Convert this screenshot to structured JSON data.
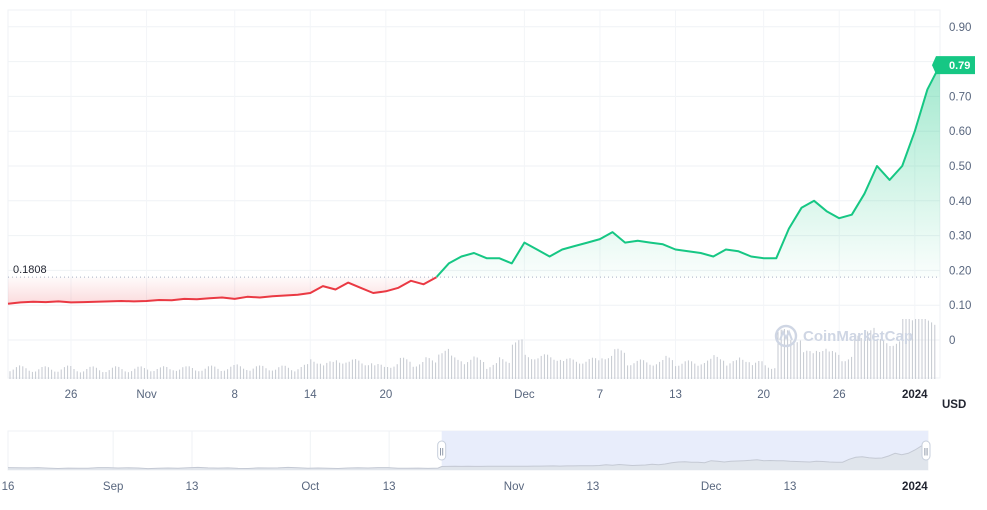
{
  "watermark": "CoinMarketCap",
  "unit_label": "USD",
  "colors": {
    "up": "#16c784",
    "down": "#ea3943",
    "volume": "#c4c8d0",
    "navigator": "#e8edfb"
  },
  "chart_data": {
    "type": "line",
    "title": "",
    "ylabel": "",
    "unit": "USD",
    "ylim": [
      0,
      0.9
    ],
    "y_ticks": [
      "0.90",
      "0.80",
      "0.70",
      "0.60",
      "0.50",
      "0.40",
      "0.30",
      "0.20",
      "0.10",
      "0"
    ],
    "y_tick_values": [
      0.9,
      0.8,
      0.7,
      0.6,
      0.5,
      0.4,
      0.3,
      0.2,
      0.1,
      0
    ],
    "x_ticks": [
      "26",
      "Nov",
      "8",
      "14",
      "20",
      "Dec",
      "7",
      "13",
      "20",
      "26",
      "2024"
    ],
    "x_tick_dates": [
      "2023-10-26",
      "2023-11-01",
      "2023-11-08",
      "2023-11-14",
      "2023-11-20",
      "2023-12-01",
      "2023-12-07",
      "2023-12-13",
      "2023-12-20",
      "2023-12-26",
      "2024-01-01"
    ],
    "x_range": [
      "2023-10-21",
      "2024-01-03"
    ],
    "reference_line": {
      "value": 0.1808,
      "label": "0.1808"
    },
    "current_price": {
      "value": 0.79,
      "label": "0.79"
    },
    "series": [
      {
        "values": [
          [
            "2023-10-21",
            0.104
          ],
          [
            "2023-10-22",
            0.108
          ],
          [
            "2023-10-23",
            0.11
          ],
          [
            "2023-10-24",
            0.109
          ],
          [
            "2023-10-25",
            0.111
          ],
          [
            "2023-10-26",
            0.108
          ],
          [
            "2023-10-27",
            0.109
          ],
          [
            "2023-10-28",
            0.11
          ],
          [
            "2023-10-29",
            0.111
          ],
          [
            "2023-10-30",
            0.112
          ],
          [
            "2023-10-31",
            0.111
          ],
          [
            "2023-11-01",
            0.112
          ],
          [
            "2023-11-02",
            0.115
          ],
          [
            "2023-11-03",
            0.114
          ],
          [
            "2023-11-04",
            0.118
          ],
          [
            "2023-11-05",
            0.117
          ],
          [
            "2023-11-06",
            0.12
          ],
          [
            "2023-11-07",
            0.122
          ],
          [
            "2023-11-08",
            0.118
          ],
          [
            "2023-11-09",
            0.124
          ],
          [
            "2023-11-10",
            0.122
          ],
          [
            "2023-11-11",
            0.126
          ],
          [
            "2023-11-12",
            0.128
          ],
          [
            "2023-11-13",
            0.13
          ],
          [
            "2023-11-14",
            0.135
          ],
          [
            "2023-11-15",
            0.155
          ],
          [
            "2023-11-16",
            0.145
          ],
          [
            "2023-11-17",
            0.165
          ],
          [
            "2023-11-18",
            0.15
          ],
          [
            "2023-11-19",
            0.135
          ],
          [
            "2023-11-20",
            0.14
          ],
          [
            "2023-11-21",
            0.15
          ],
          [
            "2023-11-22",
            0.17
          ],
          [
            "2023-11-23",
            0.16
          ],
          [
            "2023-11-24",
            0.18
          ],
          [
            "2023-11-25",
            0.22
          ],
          [
            "2023-11-26",
            0.24
          ],
          [
            "2023-11-27",
            0.25
          ],
          [
            "2023-11-28",
            0.235
          ],
          [
            "2023-11-29",
            0.235
          ],
          [
            "2023-11-30",
            0.22
          ],
          [
            "2023-12-01",
            0.28
          ],
          [
            "2023-12-02",
            0.26
          ],
          [
            "2023-12-03",
            0.24
          ],
          [
            "2023-12-04",
            0.26
          ],
          [
            "2023-12-05",
            0.27
          ],
          [
            "2023-12-06",
            0.28
          ],
          [
            "2023-12-07",
            0.29
          ],
          [
            "2023-12-08",
            0.31
          ],
          [
            "2023-12-09",
            0.28
          ],
          [
            "2023-12-10",
            0.285
          ],
          [
            "2023-12-11",
            0.28
          ],
          [
            "2023-12-12",
            0.275
          ],
          [
            "2023-12-13",
            0.26
          ],
          [
            "2023-12-14",
            0.255
          ],
          [
            "2023-12-15",
            0.25
          ],
          [
            "2023-12-16",
            0.24
          ],
          [
            "2023-12-17",
            0.26
          ],
          [
            "2023-12-18",
            0.255
          ],
          [
            "2023-12-19",
            0.24
          ],
          [
            "2023-12-20",
            0.235
          ],
          [
            "2023-12-21",
            0.235
          ],
          [
            "2023-12-22",
            0.32
          ],
          [
            "2023-12-23",
            0.38
          ],
          [
            "2023-12-24",
            0.4
          ],
          [
            "2023-12-25",
            0.37
          ],
          [
            "2023-12-26",
            0.35
          ],
          [
            "2023-12-27",
            0.36
          ],
          [
            "2023-12-28",
            0.42
          ],
          [
            "2023-12-29",
            0.5
          ],
          [
            "2023-12-30",
            0.46
          ],
          [
            "2023-12-31",
            0.5
          ],
          [
            "2024-01-01",
            0.6
          ],
          [
            "2024-01-02",
            0.72
          ],
          [
            "2024-01-03",
            0.79
          ]
        ]
      }
    ]
  },
  "navigator": {
    "x_ticks": [
      "16",
      "Sep",
      "13",
      "Oct",
      "13",
      "Nov",
      "13",
      "Dec",
      "13",
      "2024"
    ],
    "x_tick_dates": [
      "2023-08-16",
      "2023-09-01",
      "2023-09-13",
      "2023-10-01",
      "2023-10-13",
      "2023-11-01",
      "2023-11-13",
      "2023-12-01",
      "2023-12-13",
      "2024-01-01"
    ],
    "x_range": [
      "2023-08-16",
      "2024-01-03"
    ],
    "selection_start": "2023-10-21",
    "selection_end": "2024-01-03",
    "handle_glyph": "||"
  }
}
